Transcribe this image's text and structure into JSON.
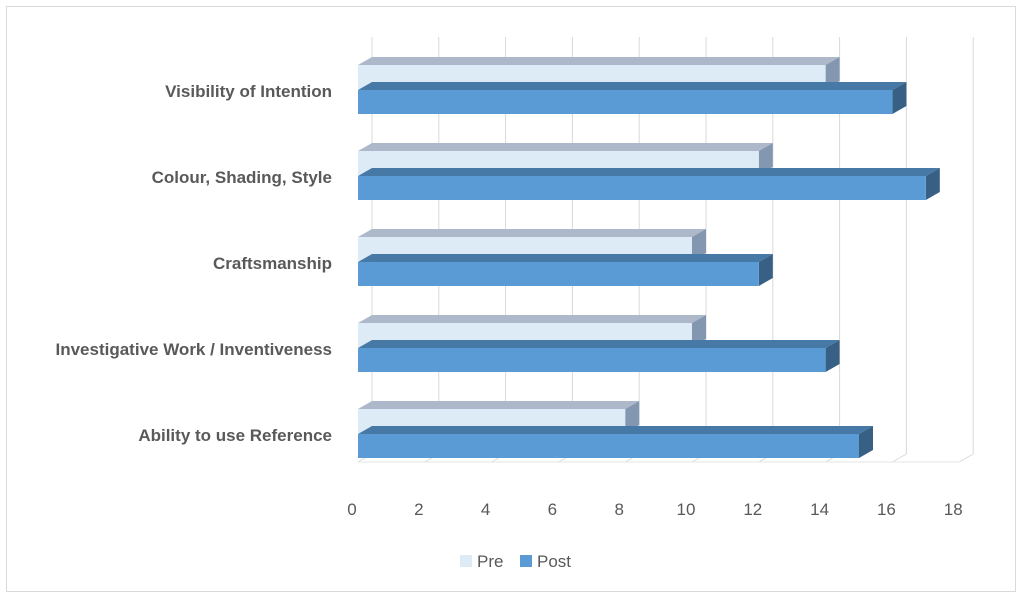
{
  "chart_data": {
    "type": "bar",
    "orientation": "horizontal",
    "style": "3d",
    "categories": [
      "Visibility of Intention",
      "Colour, Shading, Style",
      "Craftsmanship",
      "Investigative Work / Inventiveness",
      "Ability to use Reference"
    ],
    "series": [
      {
        "name": "Pre",
        "values": [
          14,
          12,
          10,
          10,
          8
        ],
        "color": "#ddebf7"
      },
      {
        "name": "Post",
        "values": [
          16,
          17,
          12,
          14,
          15
        ],
        "color": "#5b9bd5"
      }
    ],
    "xlim": [
      0,
      18
    ],
    "ticks": [
      "0",
      "2",
      "4",
      "6",
      "8",
      "10",
      "12",
      "14",
      "16",
      "18"
    ],
    "grid": true,
    "legend": "bottom",
    "title": "",
    "xlabel": "",
    "ylabel": ""
  }
}
